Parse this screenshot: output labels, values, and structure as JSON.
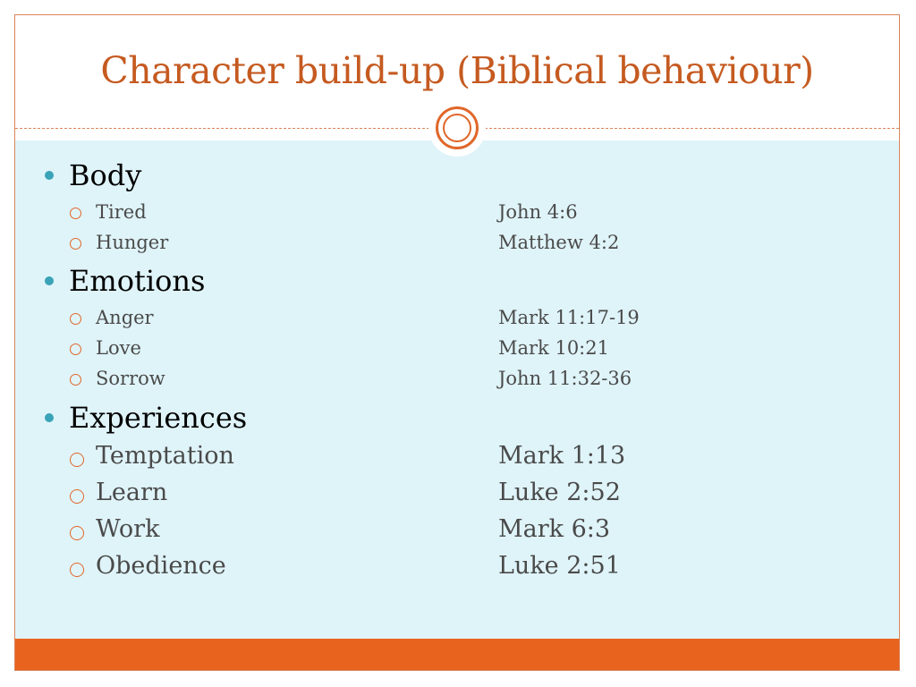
{
  "slide": {
    "title": "Character build-up (Biblical behaviour)",
    "sections": [
      {
        "heading": "Body",
        "items": [
          {
            "label": "Tired",
            "ref": "John 4:6"
          },
          {
            "label": "Hunger",
            "ref": "Matthew 4:2"
          }
        ]
      },
      {
        "heading": "Emotions",
        "items": [
          {
            "label": "Anger",
            "ref": "Mark 11:17-19"
          },
          {
            "label": "Love",
            "ref": "Mark 10:21"
          },
          {
            "label": "Sorrow",
            "ref": "John 11:32-36"
          }
        ]
      },
      {
        "heading": "Experiences",
        "items": [
          {
            "label": "Temptation",
            "ref": "Mark 1:13"
          },
          {
            "label": "Learn",
            "ref": "Luke 2:52"
          },
          {
            "label": "Work",
            "ref": "Mark 6:3"
          },
          {
            "label": "Obedience",
            "ref": "Luke 2:51"
          }
        ]
      }
    ],
    "colors": {
      "accent": "#e8631e",
      "title": "#c55a20",
      "content_bg": "#dff4f9",
      "bullet": "#3aa3b8"
    },
    "icons": {
      "section_bullet": "filled-circle-bullet-icon",
      "item_bullet": "hollow-circle-bullet-icon",
      "ornament": "double-ring-ornament-icon"
    }
  }
}
